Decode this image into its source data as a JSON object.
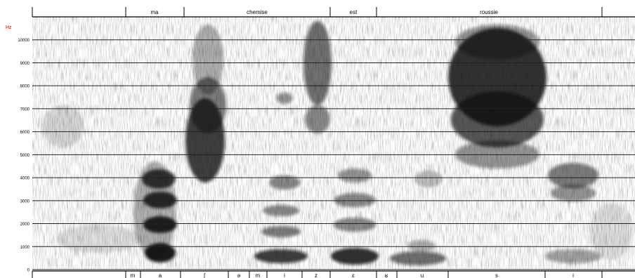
{
  "chart_data": {
    "type": "heatmap",
    "ylabel": "Hz",
    "ylim": [
      0,
      11000
    ],
    "yticks": [
      0,
      1000,
      2000,
      3000,
      4000,
      5000,
      6000,
      7000,
      8000,
      9000,
      10000
    ],
    "grid": true,
    "ink_color": "#111111",
    "unit_color": "#cc0000",
    "words": [
      "ma",
      "chemise",
      "est",
      "roussie"
    ],
    "phones": [
      "m",
      "a",
      "ʃ",
      "ə",
      "m",
      "i",
      "z",
      "ɛ",
      "ʁ",
      "u",
      "s",
      "i"
    ]
  }
}
